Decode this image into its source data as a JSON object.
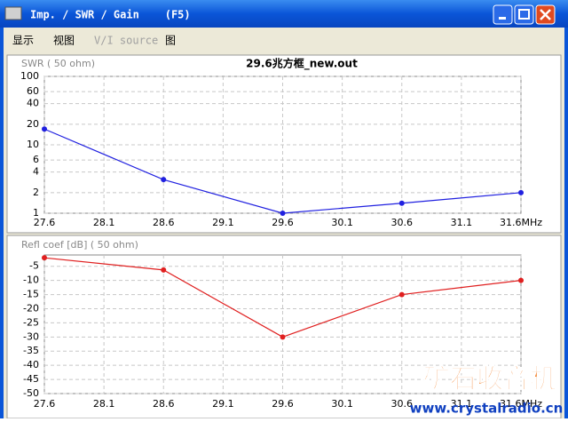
{
  "window": {
    "title": "Imp. / SWR / Gain    (F5)",
    "menu": [
      "显示",
      "视图",
      "V/I source",
      "图"
    ]
  },
  "watermark": {
    "title": "矿石收音机",
    "url": "www.crystalradio.cn"
  },
  "chart_data": [
    {
      "type": "line",
      "title": "29.6兆方框_new.out",
      "y_label": "SWR ( 50 ohm)",
      "x": [
        27.6,
        28.6,
        29.6,
        30.6,
        31.6
      ],
      "series": [
        {
          "name": "SWR",
          "color": "#2020e0",
          "values": [
            17,
            3.1,
            1.0,
            1.4,
            2.0
          ]
        }
      ],
      "xlim": [
        27.6,
        31.6
      ],
      "xticks": [
        27.6,
        28.1,
        28.6,
        29.1,
        29.6,
        30.1,
        30.6,
        31.1,
        {
          "value": 31.6,
          "label": "31.6MHz"
        }
      ],
      "ylim": [
        1,
        100
      ],
      "yticks": [
        1,
        2,
        4,
        6,
        10,
        20,
        40,
        60,
        100
      ],
      "log_y": true,
      "grid": true
    },
    {
      "type": "line",
      "y_label": "Refl coef [dB] ( 50 ohm)",
      "x": [
        27.6,
        28.6,
        29.6,
        30.6,
        31.6
      ],
      "series": [
        {
          "name": "Refl coef",
          "color": "#e02020",
          "values": [
            -2,
            -6.3,
            -30,
            -15,
            -10
          ]
        }
      ],
      "xlim": [
        27.6,
        31.6
      ],
      "xticks": [
        27.6,
        28.1,
        28.6,
        29.1,
        29.6,
        30.1,
        30.6,
        31.1,
        {
          "value": 31.6,
          "label": "31.6MHz"
        }
      ],
      "ylim": [
        -50,
        -1
      ],
      "yticks": [
        -5,
        -10,
        -15,
        -20,
        -25,
        -30,
        -35,
        -40,
        -45,
        -50
      ],
      "log_y": false,
      "grid": true
    }
  ]
}
